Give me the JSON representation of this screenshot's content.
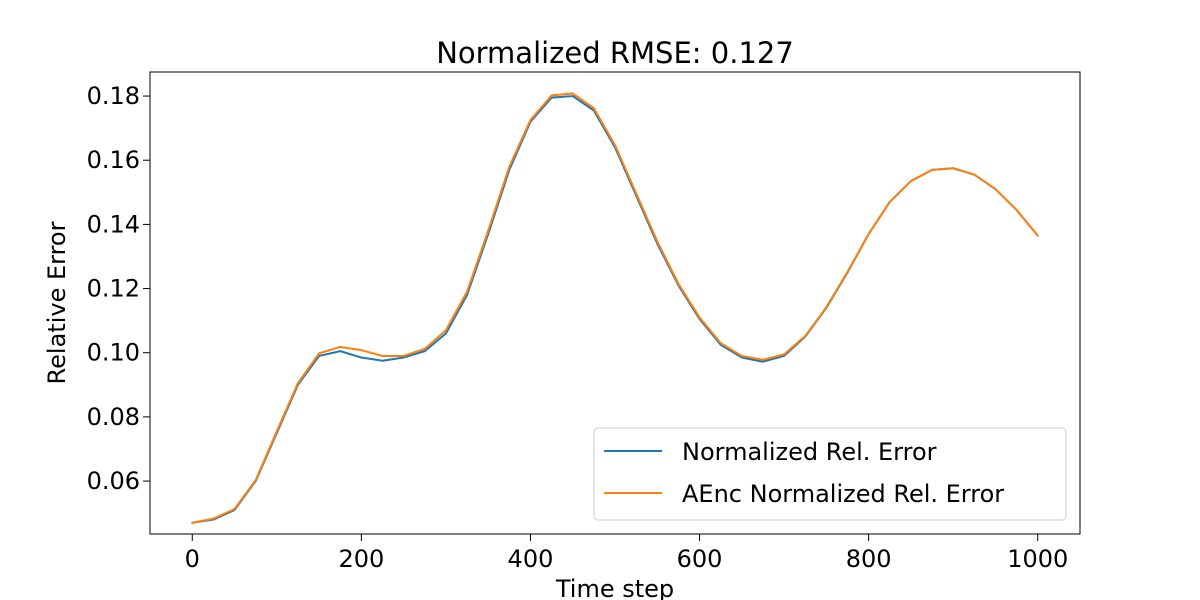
{
  "chart_data": {
    "type": "line",
    "title": "Normalized RMSE: 0.127",
    "xlabel": "Time step",
    "ylabel": "Relative Error",
    "xlim": [
      -50,
      1050
    ],
    "ylim": [
      0.0435,
      0.1875
    ],
    "xticks": [
      0,
      200,
      400,
      600,
      800,
      1000
    ],
    "xtick_labels": [
      "0",
      "200",
      "400",
      "600",
      "800",
      "1000"
    ],
    "yticks": [
      0.06,
      0.08,
      0.1,
      0.12,
      0.14,
      0.16,
      0.18
    ],
    "ytick_labels": [
      "0.06",
      "0.08",
      "0.10",
      "0.12",
      "0.14",
      "0.16",
      "0.18"
    ],
    "grid": false,
    "legend_position": "lower right",
    "x": [
      0,
      25,
      50,
      75,
      100,
      125,
      150,
      175,
      200,
      225,
      250,
      275,
      300,
      325,
      350,
      375,
      400,
      425,
      450,
      475,
      500,
      525,
      550,
      575,
      600,
      625,
      650,
      675,
      700,
      725,
      750,
      775,
      800,
      825,
      850,
      875,
      900,
      925,
      950,
      975,
      1000
    ],
    "series": [
      {
        "name": "Normalized Rel. Error",
        "color": "#1f77b4",
        "values": [
          0.047,
          0.048,
          0.051,
          0.06,
          0.075,
          0.09,
          0.099,
          0.1005,
          0.0985,
          0.0975,
          0.0985,
          0.1005,
          0.106,
          0.118,
          0.137,
          0.157,
          0.172,
          0.1795,
          0.18,
          0.1755,
          0.164,
          0.149,
          0.134,
          0.121,
          0.1105,
          0.1025,
          0.0985,
          0.0972,
          0.099,
          0.105,
          0.114,
          0.125,
          0.137,
          0.147,
          0.1535,
          0.157,
          0.1575,
          0.1555,
          0.151,
          0.1445,
          0.1365
        ]
      },
      {
        "name": "AEnc Normalized Rel. Error",
        "color": "#ff7f0e",
        "values": [
          0.047,
          0.0483,
          0.0513,
          0.0603,
          0.0755,
          0.0905,
          0.0998,
          0.1018,
          0.1008,
          0.099,
          0.099,
          0.1012,
          0.107,
          0.119,
          0.138,
          0.158,
          0.1725,
          0.1802,
          0.1808,
          0.1762,
          0.1647,
          0.1497,
          0.1347,
          0.1215,
          0.111,
          0.103,
          0.099,
          0.0978,
          0.0995,
          0.1052,
          0.1142,
          0.1252,
          0.137,
          0.147,
          0.1535,
          0.157,
          0.1575,
          0.1555,
          0.151,
          0.1445,
          0.1365
        ]
      }
    ]
  }
}
